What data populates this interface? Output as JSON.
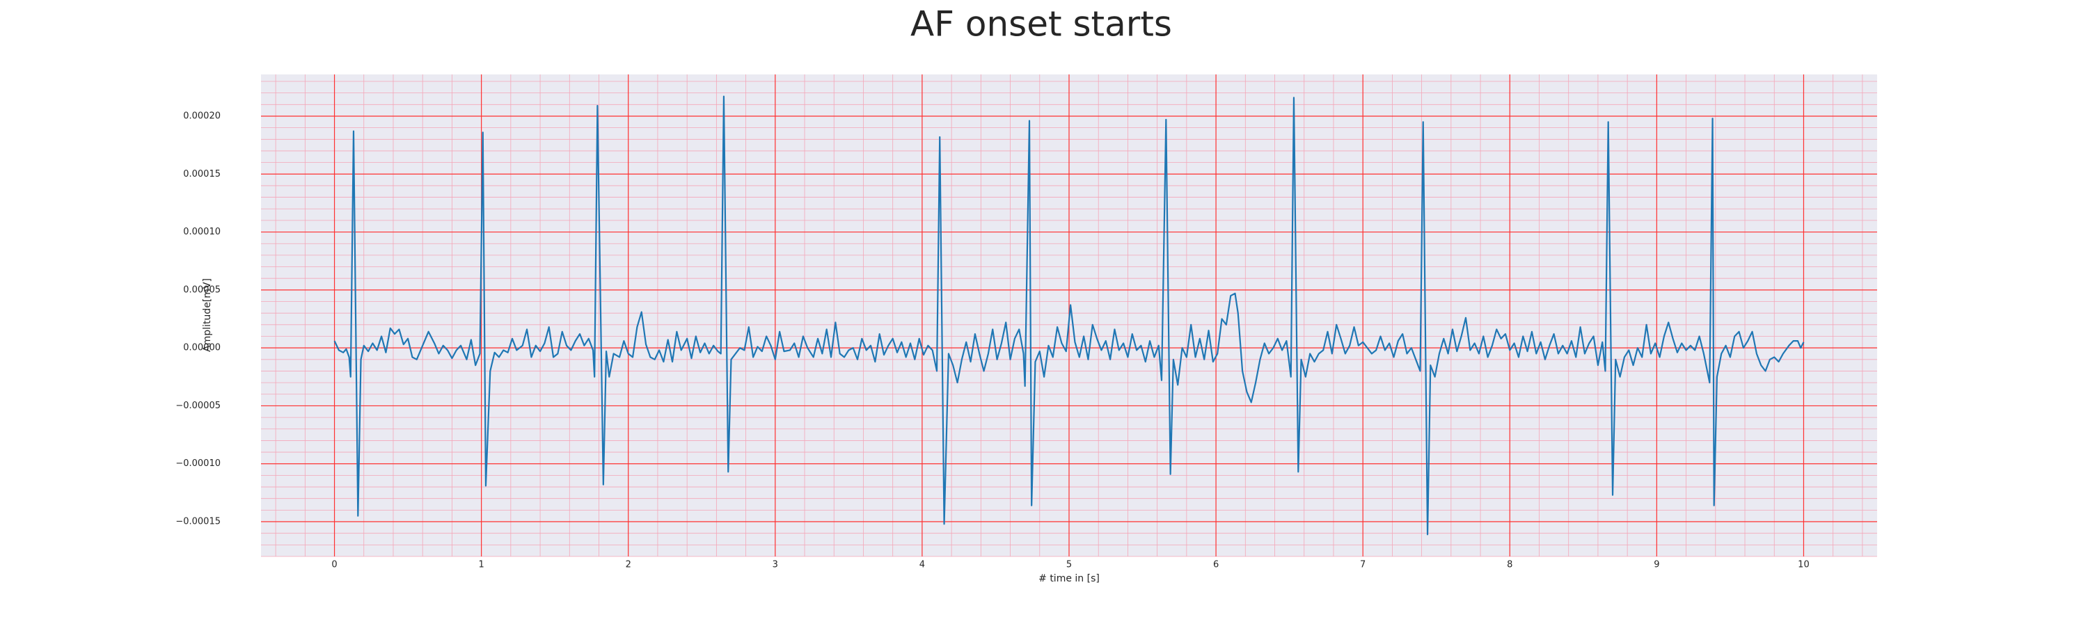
{
  "chart_data": {
    "type": "line",
    "title": "AF onset starts",
    "x_label": "# time in [s]",
    "y_label": "Amplitude[mV]",
    "xlim": [
      -0.5,
      10.5
    ],
    "xticks": [
      0,
      1,
      2,
      3,
      4,
      5,
      6,
      7,
      8,
      9,
      10
    ],
    "ylim": [
      -0.00018,
      0.000236
    ],
    "yticks": [
      {
        "value": -0.00015,
        "label": "−0.00015"
      },
      {
        "value": -0.0001,
        "label": "−0.00010"
      },
      {
        "value": -5e-05,
        "label": "−0.00005"
      },
      {
        "value": 0,
        "label": "0.00000"
      },
      {
        "value": 5e-05,
        "label": "0.00005"
      },
      {
        "value": 0.0001,
        "label": "0.00010"
      },
      {
        "value": 0.00015,
        "label": "0.00015"
      },
      {
        "value": 0.0002,
        "label": "0.00020"
      }
    ],
    "grid": true,
    "grid_color": "#ff3030",
    "minor_grid_color": "#f4a6b8",
    "minor_per_major": 5,
    "background": "#eaeaf2",
    "color": "#1f77b4",
    "x": [
      0.0,
      0.03,
      0.06,
      0.08,
      0.1,
      0.11,
      0.13,
      0.16,
      0.18,
      0.2,
      0.23,
      0.26,
      0.29,
      0.32,
      0.35,
      0.38,
      0.41,
      0.44,
      0.47,
      0.5,
      0.53,
      0.56,
      0.6,
      0.64,
      0.68,
      0.71,
      0.74,
      0.77,
      0.8,
      0.83,
      0.86,
      0.9,
      0.93,
      0.96,
      0.99,
      1.01,
      1.03,
      1.06,
      1.09,
      1.12,
      1.15,
      1.18,
      1.21,
      1.24,
      1.28,
      1.31,
      1.34,
      1.37,
      1.4,
      1.43,
      1.46,
      1.49,
      1.52,
      1.55,
      1.58,
      1.61,
      1.64,
      1.67,
      1.7,
      1.73,
      1.76,
      1.77,
      1.79,
      1.83,
      1.85,
      1.87,
      1.9,
      1.94,
      1.97,
      2.0,
      2.03,
      2.06,
      2.09,
      2.12,
      2.15,
      2.18,
      2.21,
      2.24,
      2.27,
      2.3,
      2.33,
      2.36,
      2.4,
      2.43,
      2.46,
      2.49,
      2.52,
      2.55,
      2.58,
      2.61,
      2.63,
      2.65,
      2.68,
      2.7,
      2.73,
      2.76,
      2.79,
      2.82,
      2.85,
      2.88,
      2.91,
      2.94,
      2.97,
      3.0,
      3.03,
      3.06,
      3.1,
      3.13,
      3.16,
      3.19,
      3.22,
      3.26,
      3.29,
      3.32,
      3.35,
      3.38,
      3.41,
      3.44,
      3.47,
      3.5,
      3.53,
      3.56,
      3.59,
      3.62,
      3.65,
      3.68,
      3.71,
      3.74,
      3.77,
      3.8,
      3.83,
      3.86,
      3.89,
      3.92,
      3.95,
      3.98,
      4.01,
      4.04,
      4.07,
      4.1,
      4.12,
      4.15,
      4.18,
      4.21,
      4.24,
      4.27,
      4.3,
      4.33,
      4.36,
      4.39,
      4.42,
      4.45,
      4.48,
      4.51,
      4.54,
      4.57,
      4.6,
      4.63,
      4.66,
      4.69,
      4.7,
      4.73,
      4.745,
      4.77,
      4.8,
      4.83,
      4.86,
      4.89,
      4.92,
      4.95,
      4.98,
      5.01,
      5.04,
      5.07,
      5.1,
      5.13,
      5.16,
      5.19,
      5.22,
      5.25,
      5.28,
      5.31,
      5.34,
      5.37,
      5.4,
      5.43,
      5.46,
      5.49,
      5.52,
      5.55,
      5.58,
      5.61,
      5.63,
      5.66,
      5.69,
      5.71,
      5.74,
      5.77,
      5.8,
      5.83,
      5.86,
      5.89,
      5.92,
      5.95,
      5.98,
      6.01,
      6.04,
      6.07,
      6.1,
      6.13,
      6.15,
      6.18,
      6.21,
      6.24,
      6.27,
      6.3,
      6.33,
      6.36,
      6.39,
      6.42,
      6.45,
      6.48,
      6.51,
      6.53,
      6.56,
      6.58,
      6.61,
      6.64,
      6.67,
      6.7,
      6.73,
      6.76,
      6.79,
      6.82,
      6.85,
      6.88,
      6.91,
      6.94,
      6.97,
      7.0,
      7.03,
      7.06,
      7.09,
      7.12,
      7.15,
      7.18,
      7.21,
      7.24,
      7.27,
      7.3,
      7.33,
      7.36,
      7.39,
      7.41,
      7.44,
      7.46,
      7.49,
      7.52,
      7.55,
      7.58,
      7.61,
      7.64,
      7.67,
      7.7,
      7.73,
      7.76,
      7.79,
      7.82,
      7.85,
      7.88,
      7.91,
      7.94,
      7.97,
      8.0,
      8.03,
      8.06,
      8.09,
      8.12,
      8.15,
      8.18,
      8.21,
      8.24,
      8.27,
      8.3,
      8.33,
      8.36,
      8.39,
      8.42,
      8.45,
      8.48,
      8.51,
      8.54,
      8.57,
      8.6,
      8.63,
      8.65,
      8.67,
      8.7,
      8.72,
      8.75,
      8.78,
      8.81,
      8.84,
      8.87,
      8.9,
      8.93,
      8.96,
      8.99,
      9.02,
      9.05,
      9.08,
      9.11,
      9.14,
      9.17,
      9.2,
      9.23,
      9.26,
      9.29,
      9.32,
      9.36,
      9.38,
      9.39,
      9.41,
      9.44,
      9.47,
      9.5,
      9.53,
      9.56,
      9.59,
      9.62,
      9.65,
      9.68,
      9.71,
      9.74,
      9.77,
      9.8,
      9.83,
      9.86,
      9.9,
      9.93,
      9.96,
      9.98,
      10.0
    ],
    "values": [
      6e-06,
      -2e-06,
      -4e-06,
      -1e-06,
      -8e-06,
      -2.5e-05,
      0.000187,
      -0.000145,
      -1e-05,
      2e-06,
      -3e-06,
      4e-06,
      -2e-06,
      1e-05,
      -4e-06,
      1.7e-05,
      1.2e-05,
      1.6e-05,
      3e-06,
      8e-06,
      -8e-06,
      -1e-05,
      2e-06,
      1.4e-05,
      4e-06,
      -5e-06,
      2e-06,
      -2e-06,
      -9e-06,
      -2e-06,
      2e-06,
      -1e-05,
      7e-06,
      -1.5e-05,
      -5e-06,
      0.000186,
      -0.000119,
      -2e-05,
      -4e-06,
      -8e-06,
      -2e-06,
      -4e-06,
      8e-06,
      -2e-06,
      2e-06,
      1.6e-05,
      -8e-06,
      2e-06,
      -3e-06,
      4e-06,
      1.8e-05,
      -8e-06,
      -5e-06,
      1.4e-05,
      2e-06,
      -2e-06,
      6e-06,
      1.2e-05,
      2e-06,
      8e-06,
      -2e-06,
      -2.5e-05,
      0.000209,
      -0.000118,
      -3e-06,
      -2.5e-05,
      -5e-06,
      -8e-06,
      6e-06,
      -5e-06,
      -8e-06,
      1.8e-05,
      3.1e-05,
      3e-06,
      -8e-06,
      -1e-05,
      -2e-06,
      -1.2e-05,
      7e-06,
      -1.2e-05,
      1.4e-05,
      -2e-06,
      8e-06,
      -9e-06,
      1e-05,
      -4e-06,
      4e-06,
      -5e-06,
      2e-06,
      -3e-06,
      -5e-06,
      0.000217,
      -0.000107,
      -1e-05,
      -5e-06,
      0,
      -2e-06,
      1.8e-05,
      -8e-06,
      1e-06,
      -3e-06,
      1e-05,
      2e-06,
      -1e-05,
      1.4e-05,
      -3e-06,
      -2e-06,
      4e-06,
      -8e-06,
      1e-05,
      0,
      -8e-06,
      8e-06,
      -5e-06,
      1.6e-05,
      -8e-06,
      2.2e-05,
      -5e-06,
      -8e-06,
      -2e-06,
      0,
      -1e-05,
      8e-06,
      -2e-06,
      2e-06,
      -1.2e-05,
      1.2e-05,
      -6e-06,
      2e-06,
      8e-06,
      -4e-06,
      5e-06,
      -8e-06,
      4e-06,
      -1e-05,
      8e-06,
      -6e-06,
      2e-06,
      -2e-06,
      -2e-05,
      0.000182,
      -0.000152,
      -5e-06,
      -1.5e-05,
      -3e-05,
      -1e-05,
      5e-06,
      -1.2e-05,
      1.2e-05,
      -5e-06,
      -2e-05,
      -5e-06,
      1.6e-05,
      -1e-05,
      4e-06,
      2.2e-05,
      -1e-05,
      8e-06,
      1.6e-05,
      -5e-06,
      -3.3e-05,
      0.000196,
      -0.000136,
      -1.2e-05,
      -3e-06,
      -2.5e-05,
      2e-06,
      -8e-06,
      1.8e-05,
      4e-06,
      -3e-06,
      3.7e-05,
      5e-06,
      -8e-06,
      1e-05,
      -1e-05,
      2e-05,
      8e-06,
      -2e-06,
      6e-06,
      -1e-05,
      1.6e-05,
      -2e-06,
      4e-06,
      -8e-06,
      1.2e-05,
      -2e-06,
      2e-06,
      -1.2e-05,
      6e-06,
      -8e-06,
      2e-06,
      -2.8e-05,
      0.000197,
      -0.000109,
      -1e-05,
      -3.2e-05,
      0,
      -8e-06,
      2e-05,
      -8e-06,
      8e-06,
      -1e-05,
      1.5e-05,
      -1.2e-05,
      -5e-06,
      2.5e-05,
      2e-05,
      4.5e-05,
      4.7e-05,
      3e-05,
      -2e-05,
      -3.8e-05,
      -4.7e-05,
      -3e-05,
      -1e-05,
      4e-06,
      -5e-06,
      0,
      8e-06,
      -2e-06,
      6e-06,
      -2.5e-05,
      0.000216,
      -0.000107,
      -1e-05,
      -2.5e-05,
      -5e-06,
      -1.2e-05,
      -5e-06,
      -2e-06,
      1.4e-05,
      -5e-06,
      2e-05,
      8e-06,
      -5e-06,
      2e-06,
      1.8e-05,
      2e-06,
      5e-06,
      0,
      -5e-06,
      -2e-06,
      1e-05,
      -2e-06,
      4e-06,
      -8e-06,
      6e-06,
      1.2e-05,
      -5e-06,
      0,
      -1e-05,
      -2e-05,
      0.000195,
      -0.000161,
      -1.5e-05,
      -2.5e-05,
      -5e-06,
      8e-06,
      -5e-06,
      1.6e-05,
      -3e-06,
      1e-05,
      2.6e-05,
      -2e-06,
      4e-06,
      -5e-06,
      1e-05,
      -8e-06,
      2e-06,
      1.6e-05,
      8e-06,
      1.2e-05,
      -2e-06,
      4e-06,
      -8e-06,
      1e-05,
      -3e-06,
      1.4e-05,
      -5e-06,
      5e-06,
      -1e-05,
      2e-06,
      1.2e-05,
      -5e-06,
      2e-06,
      -5e-06,
      6e-06,
      -8e-06,
      1.8e-05,
      -5e-06,
      4e-06,
      1e-05,
      -1.5e-05,
      5e-06,
      -2e-05,
      0.000195,
      -0.000127,
      -1e-05,
      -2.5e-05,
      -8e-06,
      -2e-06,
      -1.5e-05,
      0,
      -8e-06,
      2e-05,
      -5e-06,
      4e-06,
      -8e-06,
      1e-05,
      2.2e-05,
      8e-06,
      -4e-06,
      4e-06,
      -2e-06,
      2e-06,
      -2e-06,
      1e-05,
      -5e-06,
      -3e-05,
      0.000198,
      -0.000136,
      -2.5e-05,
      -5e-06,
      2e-06,
      -8e-06,
      1e-05,
      1.4e-05,
      0,
      6e-06,
      1.4e-05,
      -5e-06,
      -1.5e-05,
      -2e-05,
      -1e-05,
      -8e-06,
      -1.2e-05,
      -5e-06,
      2e-06,
      6e-06,
      6e-06,
      0,
      5e-06
    ]
  }
}
